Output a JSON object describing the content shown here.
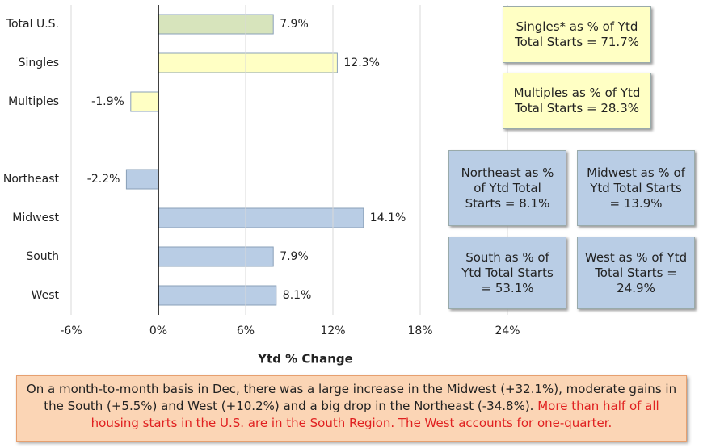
{
  "chart_data": {
    "type": "bar",
    "orientation": "horizontal",
    "categories": [
      "Total U.S.",
      "Singles",
      "Multiples",
      null,
      "Northeast",
      "Midwest",
      "South",
      "West"
    ],
    "values": [
      7.9,
      12.3,
      -1.9,
      null,
      -2.2,
      14.1,
      7.9,
      8.1
    ],
    "value_labels": [
      "7.9%",
      "12.3%",
      "-1.9%",
      null,
      "-2.2%",
      "14.1%",
      "7.9%",
      "8.1%"
    ],
    "colors": [
      "#d7e4bc",
      "#ffffc4",
      "#ffffc4",
      null,
      "#b9cde5",
      "#b9cde5",
      "#b9cde5",
      "#b9cde5"
    ],
    "xlim": [
      -6,
      36
    ],
    "xticks": [
      {
        "value": -6,
        "label": "-6%"
      },
      {
        "value": 0,
        "label": "0%"
      },
      {
        "value": 6,
        "label": "6%"
      },
      {
        "value": 12,
        "label": "12%"
      },
      {
        "value": 18,
        "label": "18%"
      },
      {
        "value": 24,
        "label": "24%"
      }
    ],
    "xlabel": "Ytd % Change",
    "grid": true,
    "annotations": [
      {
        "text": "Singles* as % of Ytd Total Starts = 71.7%",
        "color": "#ffffc4"
      },
      {
        "text": "Multiples as % of Ytd Total Starts = 28.3%",
        "color": "#ffffc4"
      },
      {
        "text": "Northeast as % of Ytd Total Starts = 8.1%",
        "color": "#b9cde5"
      },
      {
        "text": "Midwest as % of Ytd Total Starts = 13.9%",
        "color": "#b9cde5"
      },
      {
        "text": "South as % of Ytd Total Starts = 53.1%",
        "color": "#b9cde5"
      },
      {
        "text": "West as % of Ytd Total Starts = 24.9%",
        "color": "#b9cde5"
      }
    ],
    "note": {
      "text": "On a month-to-month basis in Dec, there was a large increase in the Midwest (+32.1%), moderate gains in the South (+5.5%) and West (+10.2%) and a big drop in the Northeast (-34.8%).",
      "highlight": "More than half of all housing starts in the U.S. are in the South Region. The West accounts for one-quarter."
    }
  }
}
